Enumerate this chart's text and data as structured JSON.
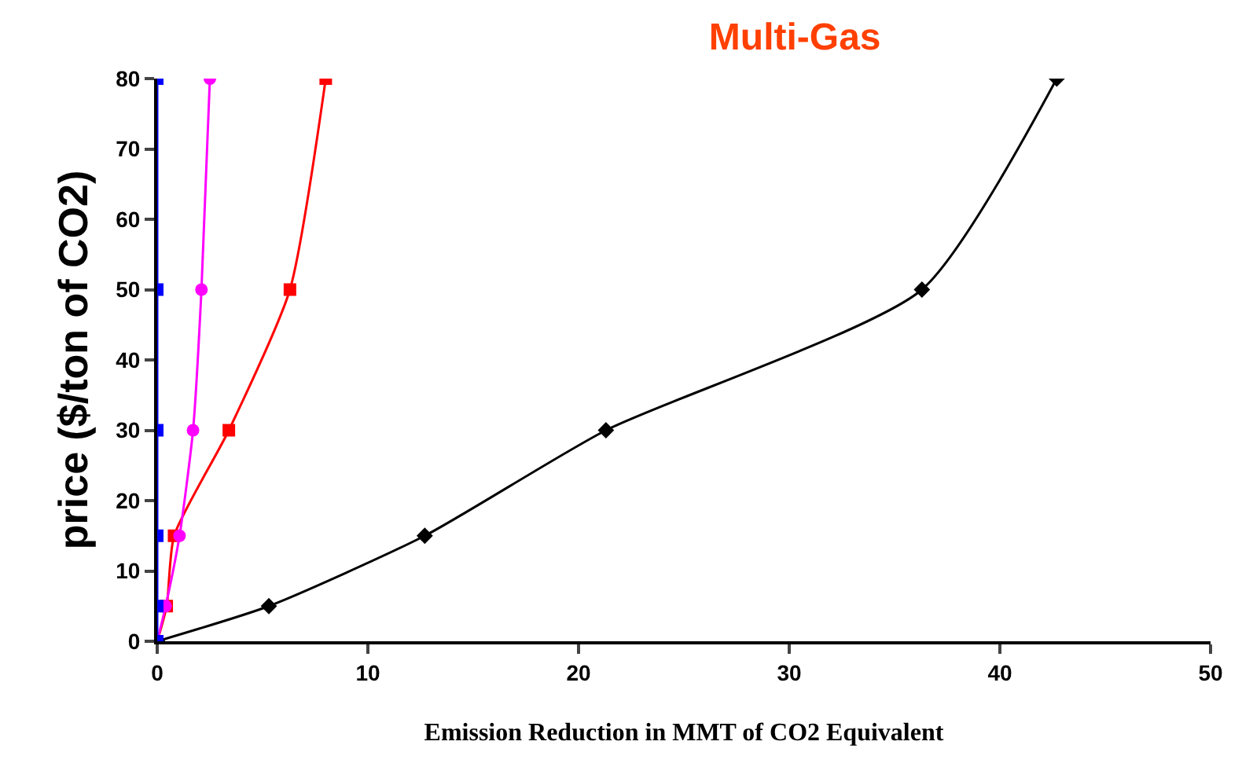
{
  "chart_data": {
    "type": "line",
    "title": "Multi-Gas",
    "xlabel": "Emission Reduction in MMT of CO2 Equivalent",
    "ylabel": "price ($/ton of CO2)",
    "xlim": [
      0,
      50
    ],
    "xticks": [
      0,
      10,
      20,
      30,
      40,
      50
    ],
    "ylim": [
      0,
      80
    ],
    "yticks": [
      0,
      10,
      20,
      30,
      40,
      50,
      60,
      70,
      80
    ],
    "grid": false,
    "series": [
      {
        "color": "#000000",
        "marker": "diamond",
        "x": [
          0,
          5.3,
          12.7,
          21.3,
          36.3,
          42.7
        ],
        "values": [
          0,
          5,
          15,
          30,
          50,
          80
        ]
      },
      {
        "color": "#ff0000",
        "marker": "square",
        "x": [
          0,
          0.45,
          0.8,
          3.4,
          6.3,
          8.0
        ],
        "values": [
          0,
          5,
          15,
          30,
          50,
          80
        ]
      },
      {
        "color": "#ff00ff",
        "marker": "circle",
        "x": [
          0,
          0.4,
          1.06,
          1.7,
          2.1,
          2.5
        ],
        "values": [
          0,
          5,
          15,
          30,
          50,
          80
        ]
      },
      {
        "color": "#0000ff",
        "marker": "square",
        "x": [
          0,
          0,
          0,
          0,
          0,
          0
        ],
        "values": [
          0,
          5,
          15,
          30,
          50,
          80
        ]
      }
    ]
  }
}
